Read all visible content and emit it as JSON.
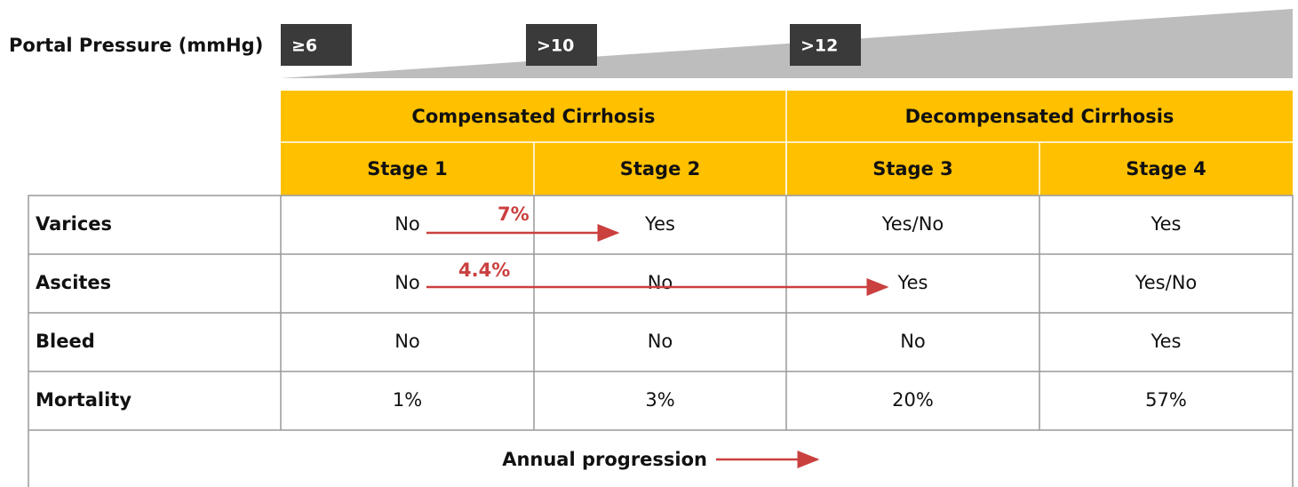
{
  "portal_pressure": {
    "label": "Portal Pressure  (mmHg)",
    "thresholds": [
      "≥6",
      ">10",
      ">12"
    ]
  },
  "table": {
    "groups": [
      "Compensated Cirrhosis",
      "Decompensated Cirrhosis"
    ],
    "stages": [
      "Stage 1",
      "Stage 2",
      "Stage 3",
      "Stage 4"
    ],
    "rows": [
      [
        "Varices",
        "No",
        "Yes",
        "Yes/No",
        "Yes"
      ],
      [
        "Ascites",
        "No",
        "No",
        "Yes",
        "Yes/No"
      ],
      [
        "Bleed",
        "No",
        "No",
        "No",
        "Yes"
      ],
      [
        "Mortality",
        "1%",
        "3%",
        "20%",
        "57%"
      ]
    ]
  },
  "annotations": [
    "7%",
    "4.4%"
  ],
  "footer": "Annual progression"
}
